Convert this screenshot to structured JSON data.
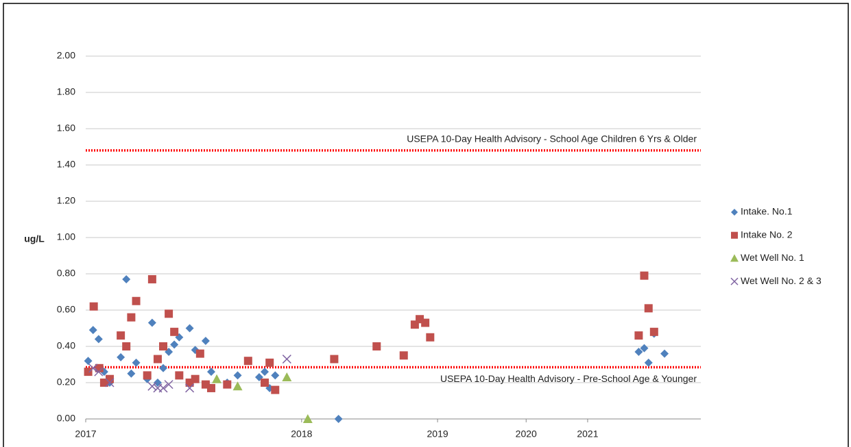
{
  "chart_data": {
    "type": "scatter",
    "y_label": "ug/L",
    "xlim": [
      0,
      100
    ],
    "xticks": [
      {
        "value": 0,
        "label": "2017"
      },
      {
        "value": 35.1,
        "label": "2018"
      },
      {
        "value": 57.2,
        "label": "2019"
      },
      {
        "value": 71.6,
        "label": "2020"
      },
      {
        "value": 81.6,
        "label": "2021"
      }
    ],
    "ylim": [
      0,
      2
    ],
    "yticks": [
      {
        "value": 0,
        "label": "0.00"
      },
      {
        "value": 0.2,
        "label": "0.20"
      },
      {
        "value": 0.4,
        "label": "0.40"
      },
      {
        "value": 0.6,
        "label": "0.60"
      },
      {
        "value": 0.8,
        "label": "0.80"
      },
      {
        "value": 1,
        "label": "1.00"
      },
      {
        "value": 1.2,
        "label": "1.20"
      },
      {
        "value": 1.4,
        "label": "1.40"
      },
      {
        "value": 1.6,
        "label": "1.60"
      },
      {
        "value": 1.8,
        "label": "1.80"
      },
      {
        "value": 2,
        "label": "2.00"
      }
    ],
    "grid": true,
    "legend": "right",
    "reference_lines": [
      {
        "value": 1.48,
        "label": "USEPA 10-Day Health Advisory  - School Age Children 6 Yrs & Older",
        "color": "#ff0000"
      },
      {
        "value": 0.285,
        "label": "USEPA 10-Day Health Advisory  - Pre-School Age & Younger",
        "color": "#ff0000"
      }
    ],
    "series": [
      {
        "name": "Intake. No.1",
        "marker": "diamond",
        "color": "#4f81bd",
        "x": [
          0.4,
          1.2,
          2.1,
          3.0,
          3.9,
          5.7,
          6.6,
          7.4,
          8.2,
          10.0,
          10.8,
          11.7,
          12.6,
          13.5,
          14.4,
          15.2,
          16.9,
          17.8,
          19.5,
          20.4,
          23.0,
          24.7,
          28.2,
          29.1,
          29.9,
          30.8,
          41.1,
          89.9,
          90.8,
          91.5,
          92.4,
          94.1
        ],
        "values": [
          0.32,
          0.49,
          0.44,
          0.26,
          0.2,
          0.34,
          0.77,
          0.25,
          0.31,
          0.22,
          0.53,
          0.2,
          0.28,
          0.37,
          0.41,
          0.45,
          0.5,
          0.38,
          0.43,
          0.26,
          0.2,
          0.24,
          0.23,
          0.26,
          0.17,
          0.24,
          0,
          0.37,
          0.39,
          0.31,
          0.47,
          0.36
        ]
      },
      {
        "name": "Intake No. 2",
        "marker": "square",
        "color": "#c0504d",
        "x": [
          0.4,
          1.3,
          2.2,
          3.0,
          3.9,
          5.7,
          6.6,
          7.4,
          8.2,
          10.0,
          10.8,
          11.7,
          12.6,
          13.5,
          14.4,
          15.2,
          16.9,
          17.8,
          18.6,
          19.5,
          20.4,
          23.0,
          26.4,
          29.1,
          29.9,
          30.8,
          40.4,
          47.3,
          51.7,
          53.5,
          54.3,
          55.2,
          56.0,
          89.9,
          90.8,
          91.5,
          92.4
        ],
        "values": [
          0.26,
          0.62,
          0.28,
          0.2,
          0.22,
          0.46,
          0.4,
          0.56,
          0.65,
          0.24,
          0.77,
          0.33,
          0.4,
          0.58,
          0.48,
          0.24,
          0.2,
          0.22,
          0.36,
          0.19,
          0.17,
          0.19,
          0.32,
          0.2,
          0.31,
          0.16,
          0.33,
          0.4,
          0.35,
          0.52,
          0.55,
          0.53,
          0.45,
          0.46,
          0.79,
          0.61,
          0.48
        ]
      },
      {
        "name": "Wet Well No. 1",
        "marker": "triangle",
        "color": "#9bbb59",
        "x": [
          21.3,
          24.7,
          32.7,
          36.1
        ],
        "values": [
          0.22,
          0.18,
          0.23,
          0
        ]
      },
      {
        "name": "Wet Well No. 2 & 3",
        "marker": "cross",
        "color": "#8064a2",
        "x": [
          1.2,
          2.1,
          3.9,
          10.8,
          11.7,
          12.6,
          13.5,
          16.9,
          32.7
        ],
        "values": [
          0.28,
          0.26,
          0.2,
          0.18,
          0.17,
          0.17,
          0.19,
          0.17,
          0.33
        ]
      }
    ]
  }
}
